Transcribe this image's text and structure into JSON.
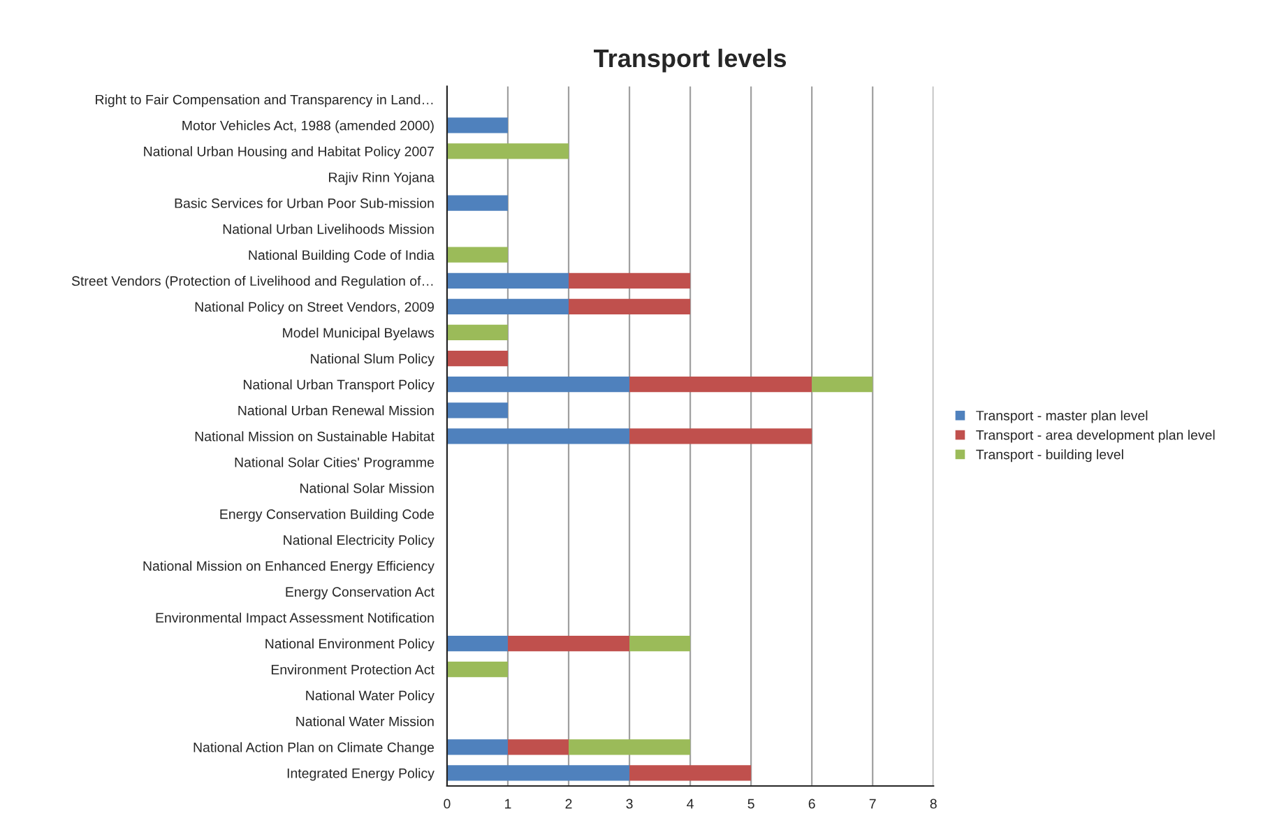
{
  "chart_data": {
    "type": "bar",
    "orientation": "horizontal",
    "stacked": true,
    "title": "Transport levels",
    "categories": [
      "Right to Fair Compensation and Transparency in Land…",
      "Motor Vehicles Act, 1988 (amended 2000)",
      "National Urban Housing and Habitat Policy 2007",
      "Rajiv Rinn Yojana",
      "Basic Services for Urban Poor Sub-mission",
      "National Urban Livelihoods Mission",
      "National Building Code of India",
      "Street Vendors (Protection of Livelihood and Regulation of…",
      "National Policy on Street Vendors, 2009",
      "Model Municipal Byelaws",
      "National Slum Policy",
      "National Urban Transport Policy",
      "National Urban Renewal Mission",
      "National Mission on Sustainable Habitat",
      "National Solar Cities' Programme",
      "National Solar Mission",
      "Energy Conservation Building Code",
      "National Electricity Policy",
      "National Mission on Enhanced Energy Efficiency",
      "Energy Conservation Act",
      "Environmental Impact Assessment Notification",
      "National Environment Policy",
      "Environment Protection Act",
      "National Water Policy",
      "National Water Mission",
      "National Action Plan on Climate Change",
      "Integrated Energy Policy"
    ],
    "series": [
      {
        "name": "Transport - master plan level",
        "color": "#4f81bd",
        "values": [
          0,
          1,
          0,
          0,
          1,
          0,
          0,
          2,
          2,
          0,
          0,
          3,
          1,
          3,
          0,
          0,
          0,
          0,
          0,
          0,
          0,
          1,
          0,
          0,
          0,
          1,
          3
        ]
      },
      {
        "name": "Transport - area development plan level",
        "color": "#c0504d",
        "values": [
          0,
          0,
          0,
          0,
          0,
          0,
          0,
          2,
          2,
          0,
          1,
          3,
          0,
          3,
          0,
          0,
          0,
          0,
          0,
          0,
          0,
          2,
          0,
          0,
          0,
          1,
          2
        ]
      },
      {
        "name": "Transport - building level",
        "color": "#9bbb59",
        "values": [
          0,
          0,
          2,
          0,
          0,
          0,
          1,
          0,
          0,
          1,
          0,
          1,
          0,
          0,
          0,
          0,
          0,
          0,
          0,
          0,
          0,
          1,
          1,
          0,
          0,
          2,
          0
        ]
      }
    ],
    "xlim": [
      0,
      8
    ],
    "xticks": [
      0,
      1,
      2,
      3,
      4,
      5,
      6,
      7,
      8
    ],
    "grid": "x",
    "legend": "right"
  }
}
